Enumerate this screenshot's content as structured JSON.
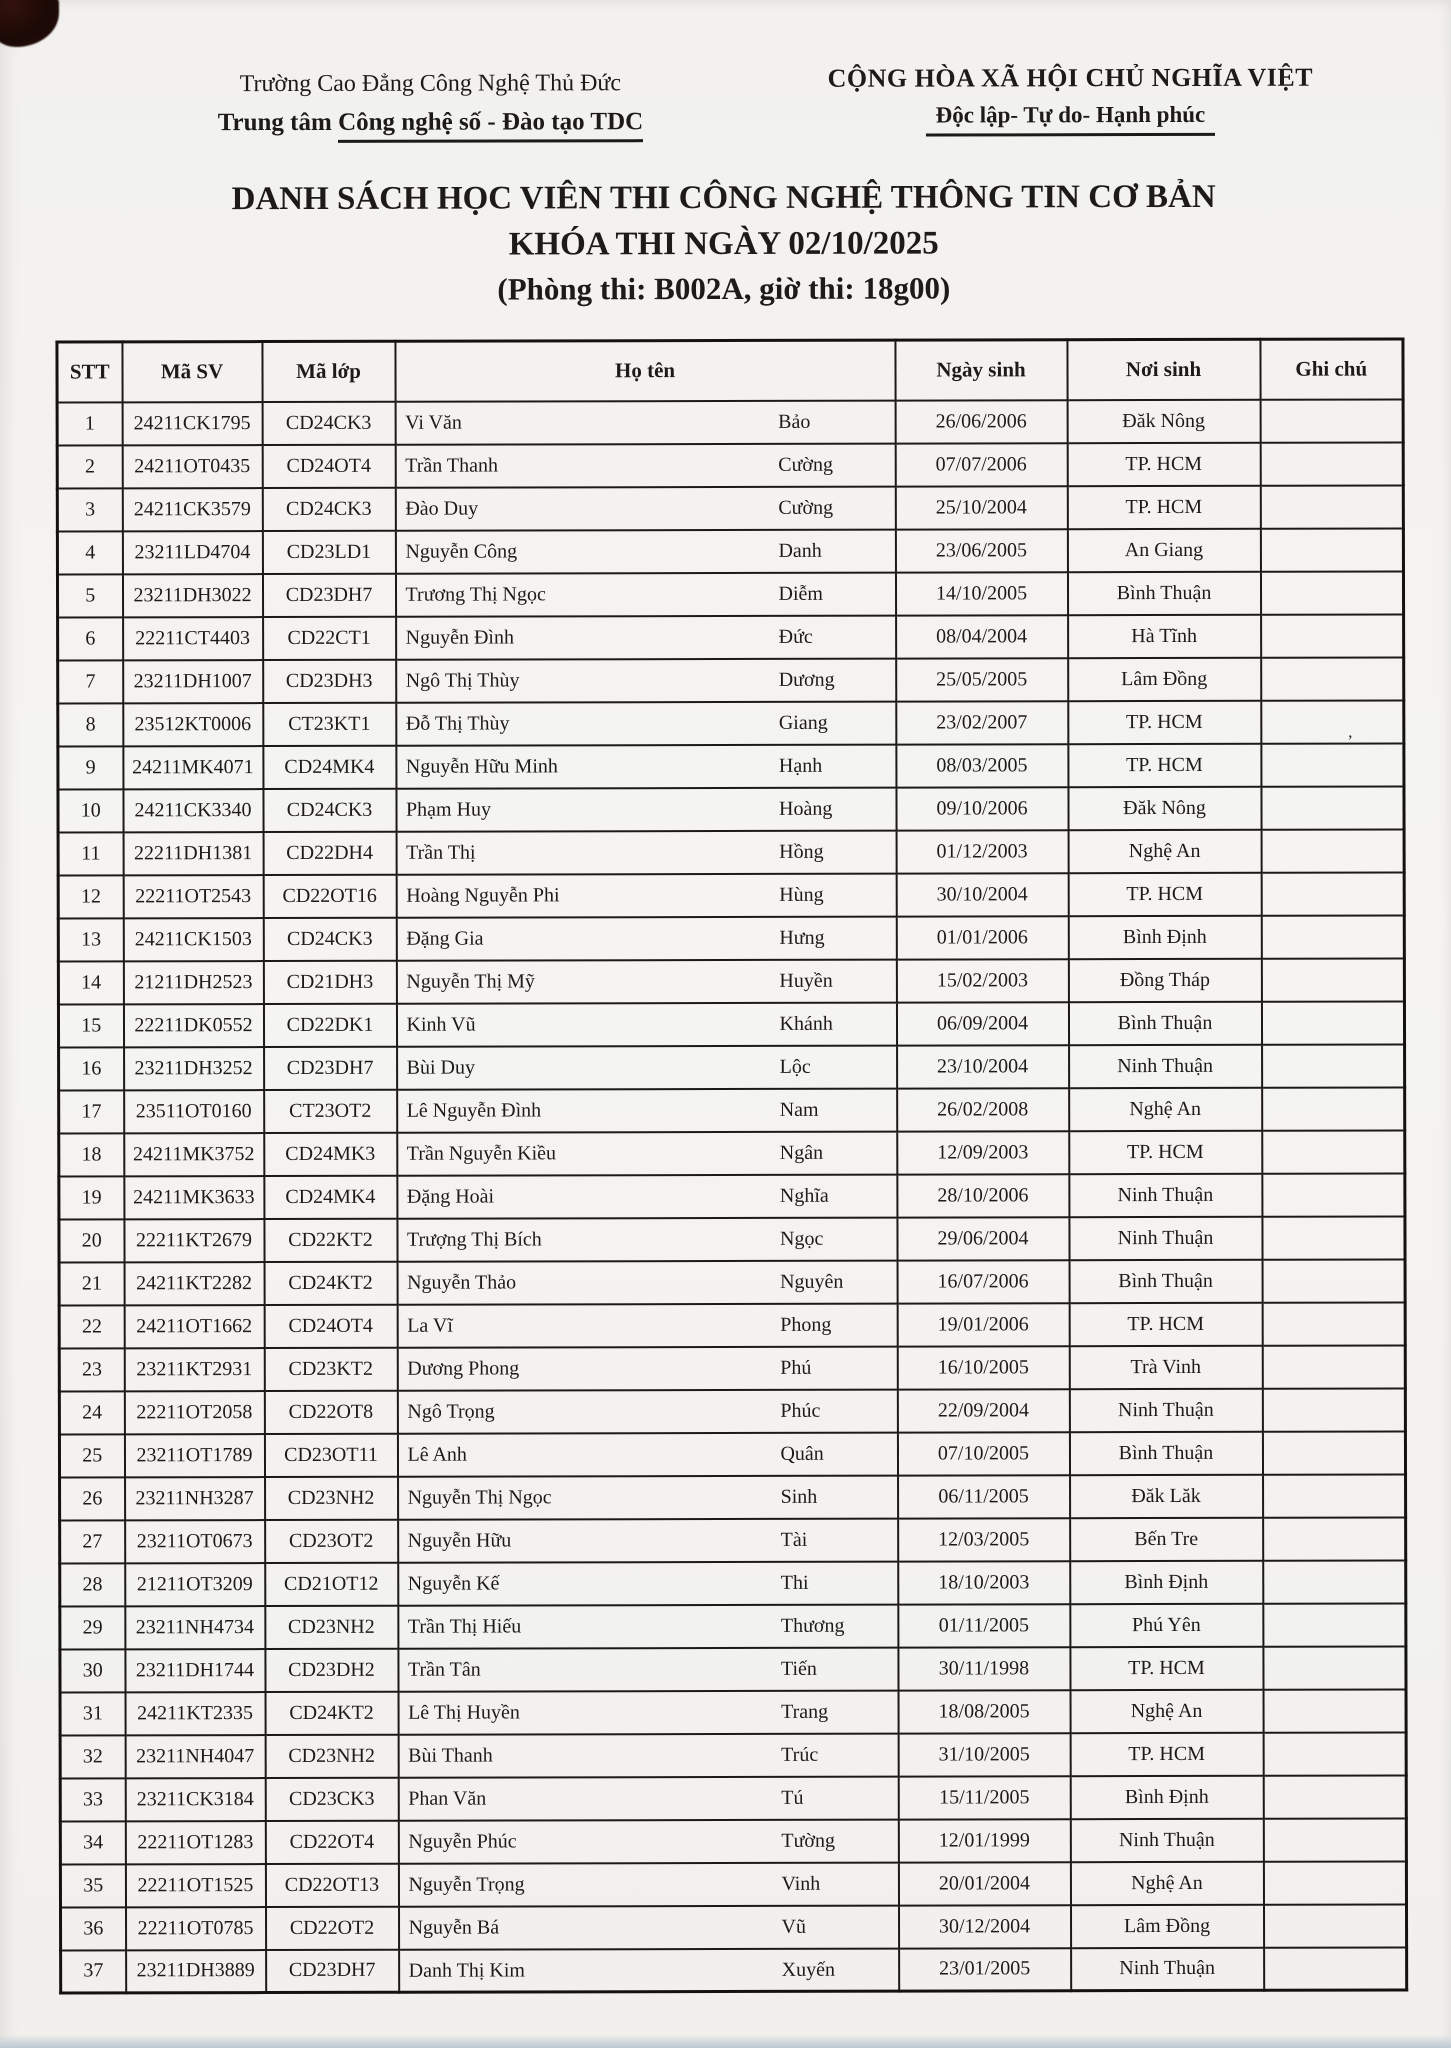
{
  "header": {
    "org_line1": "Trường Cao Đẳng Công Nghệ Thủ Đức",
    "org_line2_prefix": "Trung tâm ",
    "org_line2_underlined": "Công nghệ số - Đào tạo TDC",
    "republic_line1": "CỘNG HÒA XÃ HỘI CHỦ NGHĨA VIỆT",
    "republic_line2": "Độc lập- Tự do- Hạnh phúc"
  },
  "title": {
    "line1": "DANH SÁCH HỌC VIÊN THI CÔNG NGHỆ THÔNG TIN CƠ BẢN",
    "line2": "KHÓA THI NGÀY 02/10/2025",
    "line3": "(Phòng thi: B002A, giờ thi: 18g00)"
  },
  "table": {
    "headers": [
      "STT",
      "Mã SV",
      "Mã lớp",
      "Họ tên",
      "Ngày sinh",
      "Nơi sinh",
      "Ghi chú"
    ],
    "rows": [
      {
        "stt": "1",
        "ma_sv": "24211CK1795",
        "ma_lop": "CD24CK3",
        "ho": "Vi Văn",
        "ten": "Bảo",
        "ngay_sinh": "26/06/2006",
        "noi_sinh": "Đăk Nông",
        "ghi_chu": ""
      },
      {
        "stt": "2",
        "ma_sv": "24211OT0435",
        "ma_lop": "CD24OT4",
        "ho": "Trần Thanh",
        "ten": "Cường",
        "ngay_sinh": "07/07/2006",
        "noi_sinh": "TP. HCM",
        "ghi_chu": ""
      },
      {
        "stt": "3",
        "ma_sv": "24211CK3579",
        "ma_lop": "CD24CK3",
        "ho": "Đào Duy",
        "ten": "Cường",
        "ngay_sinh": "25/10/2004",
        "noi_sinh": "TP. HCM",
        "ghi_chu": ""
      },
      {
        "stt": "4",
        "ma_sv": "23211LD4704",
        "ma_lop": "CD23LD1",
        "ho": "Nguyễn Công",
        "ten": "Danh",
        "ngay_sinh": "23/06/2005",
        "noi_sinh": "An Giang",
        "ghi_chu": ""
      },
      {
        "stt": "5",
        "ma_sv": "23211DH3022",
        "ma_lop": "CD23DH7",
        "ho": "Trương Thị Ngọc",
        "ten": "Diễm",
        "ngay_sinh": "14/10/2005",
        "noi_sinh": "Bình Thuận",
        "ghi_chu": ""
      },
      {
        "stt": "6",
        "ma_sv": "22211CT4403",
        "ma_lop": "CD22CT1",
        "ho": "Nguyễn Đình",
        "ten": "Đức",
        "ngay_sinh": "08/04/2004",
        "noi_sinh": "Hà Tĩnh",
        "ghi_chu": ""
      },
      {
        "stt": "7",
        "ma_sv": "23211DH1007",
        "ma_lop": "CD23DH3",
        "ho": "Ngô Thị Thùy",
        "ten": "Dương",
        "ngay_sinh": "25/05/2005",
        "noi_sinh": "Lâm Đồng",
        "ghi_chu": ""
      },
      {
        "stt": "8",
        "ma_sv": "23512KT0006",
        "ma_lop": "CT23KT1",
        "ho": "Đỗ Thị Thùy",
        "ten": "Giang",
        "ngay_sinh": "23/02/2007",
        "noi_sinh": "TP. HCM",
        "ghi_chu": ""
      },
      {
        "stt": "9",
        "ma_sv": "24211MK4071",
        "ma_lop": "CD24MK4",
        "ho": "Nguyễn Hữu Minh",
        "ten": "Hạnh",
        "ngay_sinh": "08/03/2005",
        "noi_sinh": "TP. HCM",
        "ghi_chu": ""
      },
      {
        "stt": "10",
        "ma_sv": "24211CK3340",
        "ma_lop": "CD24CK3",
        "ho": "Phạm Huy",
        "ten": "Hoàng",
        "ngay_sinh": "09/10/2006",
        "noi_sinh": "Đăk Nông",
        "ghi_chu": ""
      },
      {
        "stt": "11",
        "ma_sv": "22211DH1381",
        "ma_lop": "CD22DH4",
        "ho": "Trần Thị",
        "ten": "Hồng",
        "ngay_sinh": "01/12/2003",
        "noi_sinh": "Nghệ An",
        "ghi_chu": ""
      },
      {
        "stt": "12",
        "ma_sv": "22211OT2543",
        "ma_lop": "CD22OT16",
        "ho": "Hoàng Nguyễn Phi",
        "ten": "Hùng",
        "ngay_sinh": "30/10/2004",
        "noi_sinh": "TP. HCM",
        "ghi_chu": ""
      },
      {
        "stt": "13",
        "ma_sv": "24211CK1503",
        "ma_lop": "CD24CK3",
        "ho": "Đặng Gia",
        "ten": "Hưng",
        "ngay_sinh": "01/01/2006",
        "noi_sinh": "Bình Định",
        "ghi_chu": ""
      },
      {
        "stt": "14",
        "ma_sv": "21211DH2523",
        "ma_lop": "CD21DH3",
        "ho": "Nguyễn Thị Mỹ",
        "ten": "Huyền",
        "ngay_sinh": "15/02/2003",
        "noi_sinh": "Đồng Tháp",
        "ghi_chu": ""
      },
      {
        "stt": "15",
        "ma_sv": "22211DK0552",
        "ma_lop": "CD22DK1",
        "ho": "Kinh Vũ",
        "ten": "Khánh",
        "ngay_sinh": "06/09/2004",
        "noi_sinh": "Bình Thuận",
        "ghi_chu": ""
      },
      {
        "stt": "16",
        "ma_sv": "23211DH3252",
        "ma_lop": "CD23DH7",
        "ho": "Bùi Duy",
        "ten": "Lộc",
        "ngay_sinh": "23/10/2004",
        "noi_sinh": "Ninh Thuận",
        "ghi_chu": ""
      },
      {
        "stt": "17",
        "ma_sv": "23511OT0160",
        "ma_lop": "CT23OT2",
        "ho": "Lê Nguyễn Đình",
        "ten": "Nam",
        "ngay_sinh": "26/02/2008",
        "noi_sinh": "Nghệ An",
        "ghi_chu": ""
      },
      {
        "stt": "18",
        "ma_sv": "24211MK3752",
        "ma_lop": "CD24MK3",
        "ho": "Trần Nguyễn Kiều",
        "ten": "Ngân",
        "ngay_sinh": "12/09/2003",
        "noi_sinh": "TP. HCM",
        "ghi_chu": ""
      },
      {
        "stt": "19",
        "ma_sv": "24211MK3633",
        "ma_lop": "CD24MK4",
        "ho": "Đặng Hoài",
        "ten": "Nghĩa",
        "ngay_sinh": "28/10/2006",
        "noi_sinh": "Ninh Thuận",
        "ghi_chu": ""
      },
      {
        "stt": "20",
        "ma_sv": "22211KT2679",
        "ma_lop": "CD22KT2",
        "ho": "Trượng Thị Bích",
        "ten": "Ngọc",
        "ngay_sinh": "29/06/2004",
        "noi_sinh": "Ninh Thuận",
        "ghi_chu": ""
      },
      {
        "stt": "21",
        "ma_sv": "24211KT2282",
        "ma_lop": "CD24KT2",
        "ho": "Nguyễn Thảo",
        "ten": "Nguyên",
        "ngay_sinh": "16/07/2006",
        "noi_sinh": "Bình Thuận",
        "ghi_chu": ""
      },
      {
        "stt": "22",
        "ma_sv": "24211OT1662",
        "ma_lop": "CD24OT4",
        "ho": "La Vĩ",
        "ten": "Phong",
        "ngay_sinh": "19/01/2006",
        "noi_sinh": "TP. HCM",
        "ghi_chu": ""
      },
      {
        "stt": "23",
        "ma_sv": "23211KT2931",
        "ma_lop": "CD23KT2",
        "ho": "Dương Phong",
        "ten": "Phú",
        "ngay_sinh": "16/10/2005",
        "noi_sinh": "Trà Vinh",
        "ghi_chu": ""
      },
      {
        "stt": "24",
        "ma_sv": "22211OT2058",
        "ma_lop": "CD22OT8",
        "ho": "Ngô Trọng",
        "ten": "Phúc",
        "ngay_sinh": "22/09/2004",
        "noi_sinh": "Ninh Thuận",
        "ghi_chu": ""
      },
      {
        "stt": "25",
        "ma_sv": "23211OT1789",
        "ma_lop": "CD23OT11",
        "ho": "Lê Anh",
        "ten": "Quân",
        "ngay_sinh": "07/10/2005",
        "noi_sinh": "Bình Thuận",
        "ghi_chu": ""
      },
      {
        "stt": "26",
        "ma_sv": "23211NH3287",
        "ma_lop": "CD23NH2",
        "ho": "Nguyễn Thị Ngọc",
        "ten": "Sinh",
        "ngay_sinh": "06/11/2005",
        "noi_sinh": "Đăk Lăk",
        "ghi_chu": ""
      },
      {
        "stt": "27",
        "ma_sv": "23211OT0673",
        "ma_lop": "CD23OT2",
        "ho": "Nguyễn Hữu",
        "ten": "Tài",
        "ngay_sinh": "12/03/2005",
        "noi_sinh": "Bến Tre",
        "ghi_chu": ""
      },
      {
        "stt": "28",
        "ma_sv": "21211OT3209",
        "ma_lop": "CD21OT12",
        "ho": "Nguyễn Kế",
        "ten": "Thi",
        "ngay_sinh": "18/10/2003",
        "noi_sinh": "Bình Định",
        "ghi_chu": ""
      },
      {
        "stt": "29",
        "ma_sv": "23211NH4734",
        "ma_lop": "CD23NH2",
        "ho": "Trần Thị Hiếu",
        "ten": "Thương",
        "ngay_sinh": "01/11/2005",
        "noi_sinh": "Phú Yên",
        "ghi_chu": ""
      },
      {
        "stt": "30",
        "ma_sv": "23211DH1744",
        "ma_lop": "CD23DH2",
        "ho": "Trần Tân",
        "ten": "Tiến",
        "ngay_sinh": "30/11/1998",
        "noi_sinh": "TP. HCM",
        "ghi_chu": ""
      },
      {
        "stt": "31",
        "ma_sv": "24211KT2335",
        "ma_lop": "CD24KT2",
        "ho": "Lê Thị Huyền",
        "ten": "Trang",
        "ngay_sinh": "18/08/2005",
        "noi_sinh": "Nghệ An",
        "ghi_chu": ""
      },
      {
        "stt": "32",
        "ma_sv": "23211NH4047",
        "ma_lop": "CD23NH2",
        "ho": "Bùi Thanh",
        "ten": "Trúc",
        "ngay_sinh": "31/10/2005",
        "noi_sinh": "TP. HCM",
        "ghi_chu": ""
      },
      {
        "stt": "33",
        "ma_sv": "23211CK3184",
        "ma_lop": "CD23CK3",
        "ho": "Phan Văn",
        "ten": "Tú",
        "ngay_sinh": "15/11/2005",
        "noi_sinh": "Bình Định",
        "ghi_chu": ""
      },
      {
        "stt": "34",
        "ma_sv": "22211OT1283",
        "ma_lop": "CD22OT4",
        "ho": "Nguyễn Phúc",
        "ten": "Tường",
        "ngay_sinh": "12/01/1999",
        "noi_sinh": "Ninh Thuận",
        "ghi_chu": ""
      },
      {
        "stt": "35",
        "ma_sv": "22211OT1525",
        "ma_lop": "CD22OT13",
        "ho": "Nguyễn Trọng",
        "ten": "Vinh",
        "ngay_sinh": "20/01/2004",
        "noi_sinh": "Nghệ An",
        "ghi_chu": ""
      },
      {
        "stt": "36",
        "ma_sv": "22211OT0785",
        "ma_lop": "CD22OT2",
        "ho": "Nguyễn Bá",
        "ten": "Vũ",
        "ngay_sinh": "30/12/2004",
        "noi_sinh": "Lâm Đồng",
        "ghi_chu": ""
      },
      {
        "stt": "37",
        "ma_sv": "23211DH3889",
        "ma_lop": "CD23DH7",
        "ho": "Danh Thị Kim",
        "ten": "Xuyến",
        "ngay_sinh": "23/01/2005",
        "noi_sinh": "Ninh Thuận",
        "ghi_chu": ""
      }
    ]
  },
  "artifacts": {
    "stray_mark": "’"
  }
}
